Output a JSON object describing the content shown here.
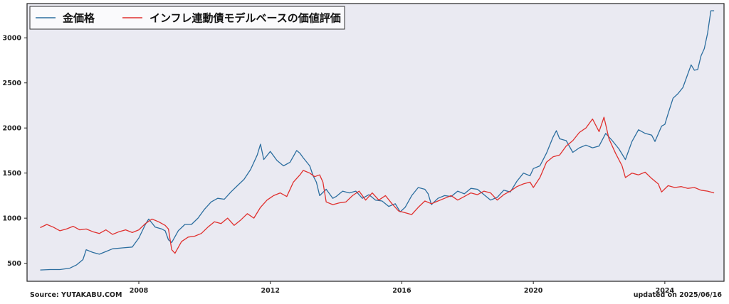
{
  "footer": {
    "source": "Source: YUTAKABU.COM",
    "updated": "updated on 2025/06/16"
  },
  "chart_data": {
    "type": "line",
    "xlim": [
      2004.6,
      2025.8
    ],
    "ylim": [
      300,
      3380
    ],
    "x_ticks": [
      2008,
      2012,
      2016,
      2020,
      2024
    ],
    "y_ticks": [
      500,
      1000,
      1500,
      2000,
      2500,
      3000
    ],
    "grid": false,
    "legend_position": "top-left",
    "background_color": "#eaeaf2",
    "series": [
      {
        "name": "金価格",
        "color": "#2c6e9f",
        "points": [
          [
            2005.0,
            425
          ],
          [
            2005.3,
            430
          ],
          [
            2005.6,
            430
          ],
          [
            2005.9,
            445
          ],
          [
            2006.1,
            480
          ],
          [
            2006.3,
            540
          ],
          [
            2006.4,
            650
          ],
          [
            2006.6,
            620
          ],
          [
            2006.8,
            600
          ],
          [
            2007.0,
            630
          ],
          [
            2007.2,
            660
          ],
          [
            2007.5,
            670
          ],
          [
            2007.8,
            680
          ],
          [
            2008.0,
            780
          ],
          [
            2008.2,
            930
          ],
          [
            2008.3,
            990
          ],
          [
            2008.5,
            900
          ],
          [
            2008.7,
            880
          ],
          [
            2008.8,
            860
          ],
          [
            2008.9,
            760
          ],
          [
            2009.0,
            730
          ],
          [
            2009.2,
            860
          ],
          [
            2009.4,
            930
          ],
          [
            2009.6,
            930
          ],
          [
            2009.8,
            1000
          ],
          [
            2010.0,
            1100
          ],
          [
            2010.2,
            1180
          ],
          [
            2010.4,
            1220
          ],
          [
            2010.6,
            1210
          ],
          [
            2010.8,
            1290
          ],
          [
            2011.0,
            1360
          ],
          [
            2011.2,
            1430
          ],
          [
            2011.4,
            1540
          ],
          [
            2011.6,
            1700
          ],
          [
            2011.7,
            1820
          ],
          [
            2011.8,
            1650
          ],
          [
            2012.0,
            1740
          ],
          [
            2012.2,
            1640
          ],
          [
            2012.4,
            1580
          ],
          [
            2012.6,
            1620
          ],
          [
            2012.8,
            1750
          ],
          [
            2012.9,
            1720
          ],
          [
            2013.0,
            1670
          ],
          [
            2013.2,
            1580
          ],
          [
            2013.3,
            1470
          ],
          [
            2013.4,
            1400
          ],
          [
            2013.5,
            1250
          ],
          [
            2013.7,
            1320
          ],
          [
            2013.9,
            1220
          ],
          [
            2014.0,
            1240
          ],
          [
            2014.2,
            1300
          ],
          [
            2014.4,
            1280
          ],
          [
            2014.6,
            1300
          ],
          [
            2014.8,
            1220
          ],
          [
            2015.0,
            1260
          ],
          [
            2015.2,
            1200
          ],
          [
            2015.4,
            1190
          ],
          [
            2015.6,
            1130
          ],
          [
            2015.8,
            1160
          ],
          [
            2015.95,
            1070
          ],
          [
            2016.1,
            1120
          ],
          [
            2016.3,
            1250
          ],
          [
            2016.5,
            1340
          ],
          [
            2016.7,
            1320
          ],
          [
            2016.8,
            1270
          ],
          [
            2016.9,
            1150
          ],
          [
            2017.1,
            1220
          ],
          [
            2017.3,
            1250
          ],
          [
            2017.5,
            1240
          ],
          [
            2017.7,
            1300
          ],
          [
            2017.9,
            1270
          ],
          [
            2018.1,
            1330
          ],
          [
            2018.3,
            1320
          ],
          [
            2018.5,
            1260
          ],
          [
            2018.7,
            1200
          ],
          [
            2018.9,
            1230
          ],
          [
            2019.1,
            1310
          ],
          [
            2019.3,
            1290
          ],
          [
            2019.5,
            1410
          ],
          [
            2019.7,
            1500
          ],
          [
            2019.9,
            1470
          ],
          [
            2020.0,
            1550
          ],
          [
            2020.2,
            1580
          ],
          [
            2020.4,
            1720
          ],
          [
            2020.6,
            1900
          ],
          [
            2020.7,
            1970
          ],
          [
            2020.8,
            1880
          ],
          [
            2021.0,
            1860
          ],
          [
            2021.2,
            1730
          ],
          [
            2021.4,
            1780
          ],
          [
            2021.6,
            1810
          ],
          [
            2021.8,
            1780
          ],
          [
            2022.0,
            1800
          ],
          [
            2022.2,
            1940
          ],
          [
            2022.4,
            1860
          ],
          [
            2022.6,
            1770
          ],
          [
            2022.8,
            1650
          ],
          [
            2023.0,
            1850
          ],
          [
            2023.2,
            1980
          ],
          [
            2023.4,
            1940
          ],
          [
            2023.6,
            1920
          ],
          [
            2023.7,
            1850
          ],
          [
            2023.9,
            2020
          ],
          [
            2024.0,
            2040
          ],
          [
            2024.1,
            2160
          ],
          [
            2024.25,
            2330
          ],
          [
            2024.4,
            2380
          ],
          [
            2024.55,
            2450
          ],
          [
            2024.7,
            2600
          ],
          [
            2024.8,
            2700
          ],
          [
            2024.9,
            2640
          ],
          [
            2025.0,
            2650
          ],
          [
            2025.1,
            2800
          ],
          [
            2025.2,
            2880
          ],
          [
            2025.3,
            3050
          ],
          [
            2025.4,
            3300
          ],
          [
            2025.5,
            3300
          ]
        ]
      },
      {
        "name": "インフレ連動債モデルベースの価値評価",
        "color": "#e0302e",
        "points": [
          [
            2005.0,
            895
          ],
          [
            2005.2,
            930
          ],
          [
            2005.4,
            900
          ],
          [
            2005.6,
            860
          ],
          [
            2005.8,
            880
          ],
          [
            2006.0,
            910
          ],
          [
            2006.2,
            870
          ],
          [
            2006.4,
            880
          ],
          [
            2006.6,
            850
          ],
          [
            2006.8,
            830
          ],
          [
            2007.0,
            870
          ],
          [
            2007.2,
            820
          ],
          [
            2007.4,
            850
          ],
          [
            2007.6,
            870
          ],
          [
            2007.8,
            840
          ],
          [
            2008.0,
            870
          ],
          [
            2008.2,
            940
          ],
          [
            2008.4,
            990
          ],
          [
            2008.6,
            960
          ],
          [
            2008.8,
            920
          ],
          [
            2008.9,
            880
          ],
          [
            2009.0,
            650
          ],
          [
            2009.1,
            610
          ],
          [
            2009.3,
            740
          ],
          [
            2009.5,
            790
          ],
          [
            2009.7,
            800
          ],
          [
            2009.9,
            830
          ],
          [
            2010.1,
            900
          ],
          [
            2010.3,
            960
          ],
          [
            2010.5,
            940
          ],
          [
            2010.7,
            1000
          ],
          [
            2010.9,
            920
          ],
          [
            2011.1,
            980
          ],
          [
            2011.3,
            1050
          ],
          [
            2011.5,
            1000
          ],
          [
            2011.7,
            1120
          ],
          [
            2011.9,
            1200
          ],
          [
            2012.1,
            1250
          ],
          [
            2012.3,
            1280
          ],
          [
            2012.5,
            1240
          ],
          [
            2012.7,
            1400
          ],
          [
            2012.9,
            1480
          ],
          [
            2013.0,
            1530
          ],
          [
            2013.2,
            1500
          ],
          [
            2013.35,
            1460
          ],
          [
            2013.5,
            1480
          ],
          [
            2013.6,
            1400
          ],
          [
            2013.7,
            1180
          ],
          [
            2013.9,
            1150
          ],
          [
            2014.1,
            1170
          ],
          [
            2014.3,
            1180
          ],
          [
            2014.5,
            1250
          ],
          [
            2014.7,
            1300
          ],
          [
            2014.9,
            1200
          ],
          [
            2015.1,
            1280
          ],
          [
            2015.3,
            1200
          ],
          [
            2015.5,
            1250
          ],
          [
            2015.7,
            1160
          ],
          [
            2015.9,
            1080
          ],
          [
            2016.1,
            1060
          ],
          [
            2016.3,
            1040
          ],
          [
            2016.5,
            1120
          ],
          [
            2016.7,
            1190
          ],
          [
            2016.9,
            1160
          ],
          [
            2017.1,
            1190
          ],
          [
            2017.3,
            1220
          ],
          [
            2017.5,
            1250
          ],
          [
            2017.7,
            1200
          ],
          [
            2017.9,
            1240
          ],
          [
            2018.1,
            1280
          ],
          [
            2018.3,
            1260
          ],
          [
            2018.5,
            1300
          ],
          [
            2018.7,
            1280
          ],
          [
            2018.9,
            1200
          ],
          [
            2019.1,
            1260
          ],
          [
            2019.3,
            1300
          ],
          [
            2019.5,
            1350
          ],
          [
            2019.7,
            1380
          ],
          [
            2019.9,
            1400
          ],
          [
            2020.0,
            1340
          ],
          [
            2020.2,
            1450
          ],
          [
            2020.4,
            1620
          ],
          [
            2020.6,
            1680
          ],
          [
            2020.8,
            1700
          ],
          [
            2021.0,
            1800
          ],
          [
            2021.2,
            1860
          ],
          [
            2021.4,
            1950
          ],
          [
            2021.6,
            2000
          ],
          [
            2021.8,
            2100
          ],
          [
            2022.0,
            1960
          ],
          [
            2022.15,
            2120
          ],
          [
            2022.3,
            1880
          ],
          [
            2022.5,
            1720
          ],
          [
            2022.7,
            1580
          ],
          [
            2022.8,
            1450
          ],
          [
            2023.0,
            1500
          ],
          [
            2023.2,
            1480
          ],
          [
            2023.4,
            1510
          ],
          [
            2023.6,
            1440
          ],
          [
            2023.8,
            1380
          ],
          [
            2023.9,
            1290
          ],
          [
            2024.1,
            1360
          ],
          [
            2024.3,
            1340
          ],
          [
            2024.5,
            1350
          ],
          [
            2024.7,
            1330
          ],
          [
            2024.9,
            1340
          ],
          [
            2025.1,
            1310
          ],
          [
            2025.3,
            1300
          ],
          [
            2025.5,
            1280
          ]
        ]
      }
    ]
  }
}
